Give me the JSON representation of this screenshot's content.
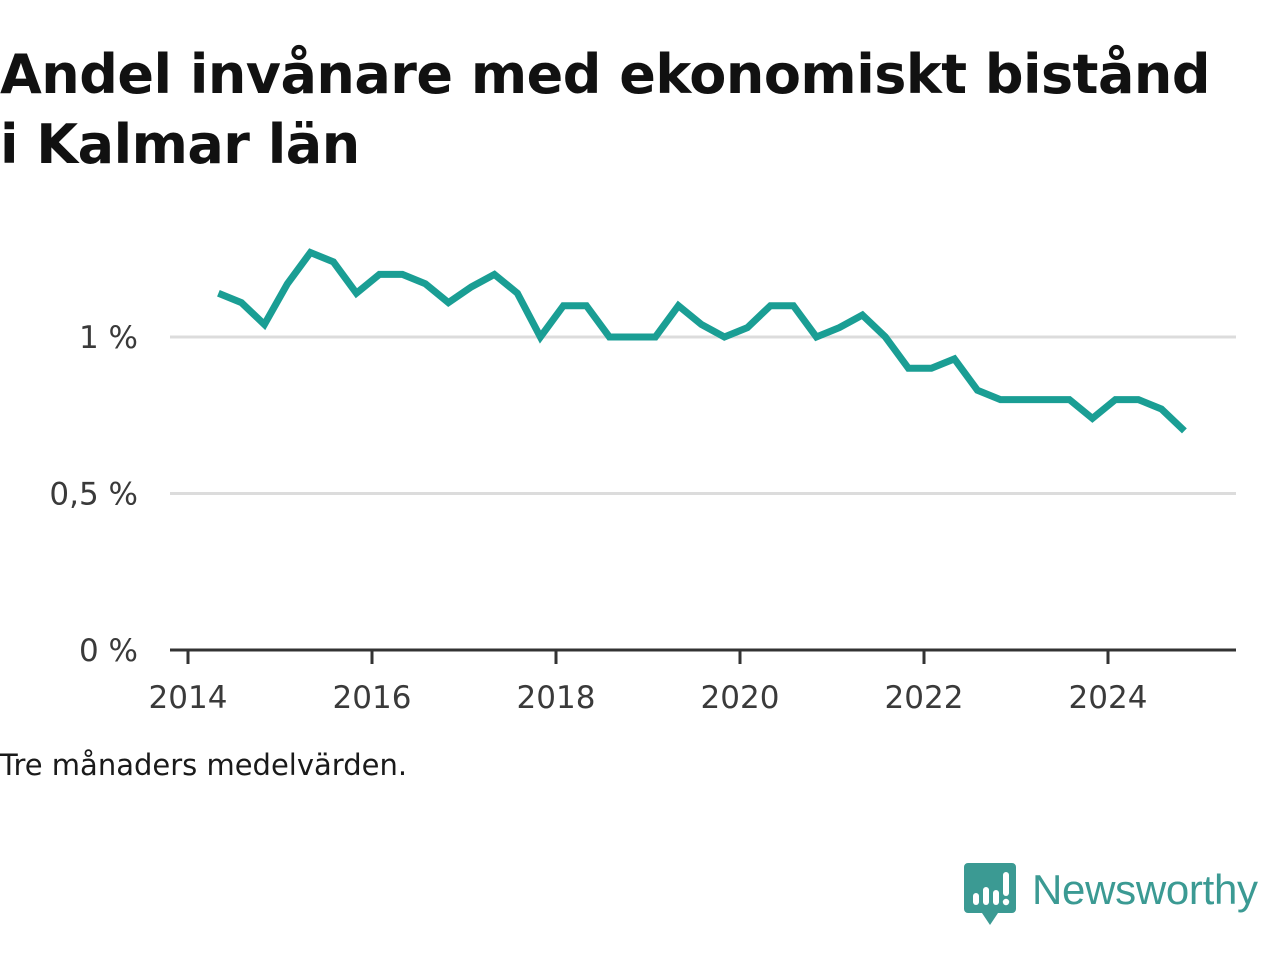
{
  "title": "Andel invånare med ekonomiskt bistånd i Kalmar län",
  "footnote": "Tre månaders medelvärden.",
  "brand": {
    "name": "Newsworthy",
    "logo_icon": "bar-chart-speech-bubble-icon",
    "color": "#3b9a93"
  },
  "chart_data": {
    "type": "line",
    "title": "Andel invånare med ekonomiskt bistånd i Kalmar län",
    "xlabel": "",
    "ylabel": "",
    "xlim": [
      2014,
      2025.3
    ],
    "ylim": [
      0,
      1.4
    ],
    "x_ticks": [
      2014,
      2016,
      2018,
      2020,
      2022,
      2024
    ],
    "x_tick_labels": [
      "2014",
      "2016",
      "2018",
      "2020",
      "2022",
      "2024"
    ],
    "y_ticks": [
      0,
      0.5,
      1
    ],
    "y_tick_labels": [
      "0 %",
      "0,5 %",
      "1 %"
    ],
    "grid": "horizontal",
    "legend": "none",
    "line_color": "#1a9e94",
    "series": [
      {
        "x": [
          2014.33,
          2014.58,
          2014.83,
          2015.08,
          2015.33,
          2015.58,
          2015.83,
          2016.08,
          2016.33,
          2016.58,
          2016.83,
          2017.08,
          2017.33,
          2017.58,
          2017.83,
          2018.08,
          2018.33,
          2018.58,
          2018.83,
          2019.08,
          2019.33,
          2019.58,
          2019.83,
          2020.08,
          2020.33,
          2020.58,
          2020.83,
          2021.08,
          2021.33,
          2021.58,
          2021.83,
          2022.08,
          2022.33,
          2022.58,
          2022.83,
          2023.08,
          2023.33,
          2023.58,
          2023.83,
          2024.08,
          2024.33,
          2024.58,
          2024.83
        ],
        "values": [
          1.14,
          1.11,
          1.04,
          1.17,
          1.27,
          1.24,
          1.14,
          1.2,
          1.2,
          1.17,
          1.11,
          1.16,
          1.2,
          1.14,
          1.0,
          1.1,
          1.1,
          1.0,
          1.0,
          1.0,
          1.1,
          1.04,
          1.0,
          1.03,
          1.1,
          1.1,
          1.0,
          1.03,
          1.07,
          1.0,
          0.9,
          0.9,
          0.93,
          0.83,
          0.8,
          0.8,
          0.8,
          0.8,
          0.74,
          0.8,
          0.8,
          0.77,
          0.7
        ]
      }
    ]
  }
}
